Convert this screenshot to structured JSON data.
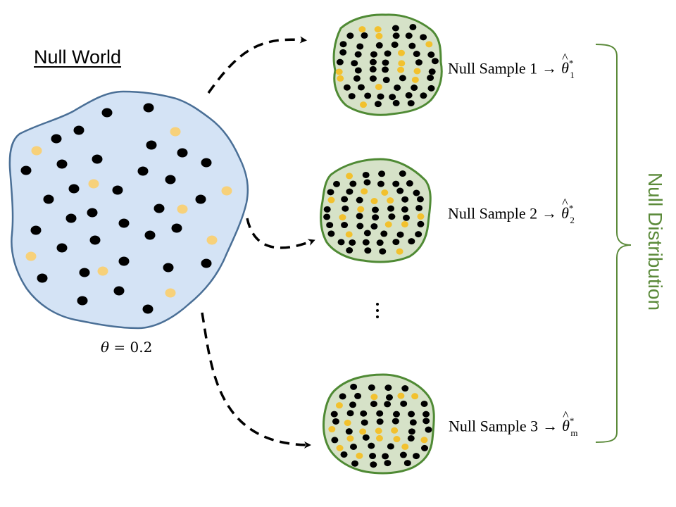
{
  "world": {
    "title": "Null World",
    "theta_symbol": "θ",
    "theta_rest": " = 0.2"
  },
  "samples": [
    {
      "label": "Null Sample 1",
      "arrow": "→",
      "estimator": "θ",
      "hat": "^",
      "sup": "*",
      "sub": "1"
    },
    {
      "label": "Null Sample 2",
      "arrow": "→",
      "estimator": "θ",
      "hat": "^",
      "sup": "*",
      "sub": "2"
    },
    {
      "label": "Null Sample 3",
      "arrow": "→",
      "estimator": "θ",
      "hat": "^",
      "sup": "*",
      "sub": "m"
    }
  ],
  "distribution_label": "Null Distribution",
  "colors": {
    "world_fill": "#d4e3f5",
    "world_stroke": "#4a6f96",
    "sample_fill": "#d6e2c8",
    "sample_stroke": "#4f8a34",
    "black_dot": "#000000",
    "world_yellow_dot": "#f7d17a",
    "sample_yellow_dot": "#f2c12e",
    "brace": "#5b8a3a",
    "label_green": "#5b8a3a"
  }
}
